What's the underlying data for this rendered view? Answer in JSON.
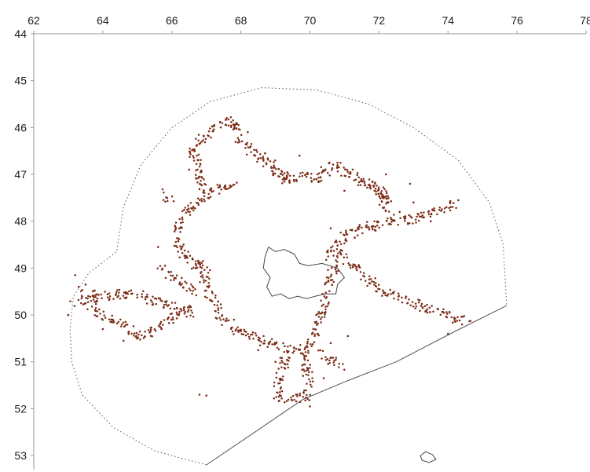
{
  "chart_data": {
    "type": "scatter",
    "title": "",
    "xlabel": "",
    "ylabel": "",
    "x_axis": {
      "position": "top",
      "range": [
        62,
        78
      ],
      "ticks": [
        62,
        64,
        66,
        68,
        70,
        72,
        74,
        76,
        78
      ]
    },
    "y_axis": {
      "inverted": true,
      "range": [
        44,
        53.3
      ],
      "ticks": [
        44,
        45,
        46,
        47,
        48,
        49,
        50,
        51,
        52,
        53
      ]
    },
    "grid": false,
    "legend": "none",
    "colors": {
      "points": "#7a2a14",
      "boundary": "#555555",
      "outline": "#444444",
      "axis": "#9a9a9a"
    },
    "series": [
      {
        "kind": "dense-point-bands",
        "paths": [
          [
            [
              67.9,
              47.25
            ],
            [
              67.4,
              47.3
            ],
            [
              67.1,
              47.35
            ],
            [
              66.9,
              47.5
            ]
          ],
          [
            [
              66.95,
              47.5
            ],
            [
              66.6,
              46.45
            ],
            [
              67.2,
              46.0
            ],
            [
              67.8,
              45.85
            ],
            [
              68.0,
              46.3
            ],
            [
              68.5,
              46.65
            ],
            [
              69.0,
              46.85
            ],
            [
              69.4,
              47.1
            ]
          ],
          [
            [
              68.9,
              46.95
            ],
            [
              69.3,
              47.15
            ],
            [
              69.7,
              47.0
            ],
            [
              70.2,
              47.1
            ],
            [
              70.7,
              46.8
            ],
            [
              71.2,
              47.0
            ],
            [
              71.6,
              47.2
            ],
            [
              71.8,
              47.25
            ],
            [
              72.1,
              47.45
            ],
            [
              72.3,
              47.85
            ],
            [
              72.35,
              48.0
            ]
          ],
          [
            [
              71.6,
              47.2
            ],
            [
              71.9,
              47.3
            ],
            [
              72.2,
              47.4
            ],
            [
              72.25,
              47.7
            ]
          ],
          [
            [
              72.35,
              48.0
            ],
            [
              73.0,
              47.95
            ],
            [
              73.6,
              47.8
            ],
            [
              74.2,
              47.65
            ]
          ],
          [
            [
              72.35,
              48.0
            ],
            [
              71.6,
              48.15
            ],
            [
              71.0,
              48.3
            ],
            [
              70.8,
              48.6
            ],
            [
              71.0,
              48.8
            ],
            [
              71.2,
              48.95
            ],
            [
              71.5,
              49.1
            ],
            [
              71.8,
              49.3
            ],
            [
              72.2,
              49.5
            ],
            [
              72.8,
              49.7
            ],
            [
              73.2,
              49.8
            ],
            [
              73.8,
              49.95
            ],
            [
              74.3,
              50.1
            ],
            [
              74.6,
              50.15
            ]
          ],
          [
            [
              70.7,
              48.5
            ],
            [
              70.6,
              48.75
            ]
          ],
          [
            [
              70.8,
              48.9
            ],
            [
              70.6,
              49.2
            ],
            [
              70.5,
              49.6
            ],
            [
              70.35,
              50.0
            ],
            [
              70.2,
              50.3
            ],
            [
              70.1,
              50.5
            ]
          ],
          [
            [
              66.95,
              47.5
            ],
            [
              66.5,
              47.7
            ],
            [
              66.2,
              48.0
            ],
            [
              66.1,
              48.3
            ],
            [
              66.25,
              48.6
            ],
            [
              66.6,
              48.9
            ],
            [
              66.9,
              49.1
            ],
            [
              67.05,
              49.4
            ],
            [
              67.1,
              49.6
            ],
            [
              67.3,
              49.85
            ],
            [
              67.5,
              50.15
            ],
            [
              67.9,
              50.35
            ],
            [
              68.4,
              50.45
            ],
            [
              68.8,
              50.6
            ],
            [
              69.3,
              50.7
            ],
            [
              69.8,
              50.75
            ],
            [
              70.1,
              50.6
            ]
          ],
          [
            [
              65.7,
              49.0
            ],
            [
              66.1,
              49.25
            ],
            [
              66.6,
              49.5
            ]
          ],
          [
            [
              69.3,
              50.8
            ],
            [
              69.2,
              51.2
            ],
            [
              69.05,
              51.55
            ],
            [
              69.1,
              51.75
            ],
            [
              69.5,
              51.8
            ],
            [
              69.85,
              51.75
            ],
            [
              70.0,
              51.45
            ],
            [
              69.9,
              51.1
            ],
            [
              69.8,
              50.8
            ]
          ],
          [
            [
              63.1,
              49.8
            ],
            [
              63.8,
              49.65
            ],
            [
              64.5,
              49.55
            ],
            [
              65.2,
              49.6
            ],
            [
              65.7,
              49.75
            ],
            [
              66.2,
              49.9
            ],
            [
              66.6,
              49.85
            ]
          ],
          [
            [
              63.6,
              49.9
            ],
            [
              64.2,
              50.05
            ],
            [
              64.7,
              50.25
            ],
            [
              65.0,
              50.45
            ],
            [
              65.4,
              50.35
            ],
            [
              65.8,
              50.15
            ],
            [
              66.2,
              49.95
            ],
            [
              66.5,
              49.95
            ]
          ],
          [
            [
              63.4,
              49.6
            ],
            [
              63.7,
              49.5
            ]
          ],
          [
            [
              70.3,
              50.8
            ],
            [
              70.6,
              50.95
            ],
            [
              70.9,
              51.1
            ]
          ],
          [
            [
              65.8,
              47.4
            ],
            [
              66.0,
              47.55
            ]
          ],
          [
            [
              66.7,
              48.8
            ],
            [
              67.0,
              49.0
            ]
          ]
        ]
      },
      {
        "kind": "scattered-points",
        "points": [
          [
            63.3,
            49.4
          ],
          [
            63.5,
            49.35
          ],
          [
            63.2,
            49.15
          ],
          [
            63.0,
            50.0
          ],
          [
            64.0,
            50.3
          ],
          [
            64.6,
            50.55
          ],
          [
            65.6,
            48.55
          ],
          [
            65.8,
            48.95
          ],
          [
            66.8,
            51.7
          ],
          [
            67.0,
            51.72
          ],
          [
            69.8,
            51.3
          ],
          [
            70.4,
            51.35
          ],
          [
            70.6,
            50.6
          ],
          [
            71.1,
            50.45
          ],
          [
            71.3,
            48.35
          ],
          [
            71.9,
            48.2
          ],
          [
            73.0,
            47.6
          ],
          [
            73.5,
            48.0
          ],
          [
            72.6,
            47.8
          ],
          [
            74.0,
            50.4
          ],
          [
            72.9,
            47.2
          ],
          [
            70.8,
            46.75
          ],
          [
            72.2,
            47.0
          ],
          [
            69.7,
            46.6
          ],
          [
            68.7,
            46.55
          ],
          [
            66.8,
            46.35
          ],
          [
            66.5,
            46.9
          ],
          [
            67.8,
            50.1
          ],
          [
            68.5,
            50.75
          ],
          [
            69.0,
            51.0
          ],
          [
            70.0,
            51.95
          ],
          [
            70.6,
            48.15
          ],
          [
            71.0,
            47.35
          ],
          [
            74.3,
            47.55
          ],
          [
            68.2,
            46.1
          ]
        ]
      }
    ],
    "boundary": {
      "style": "dashed-arc-plus-solid-line",
      "dashed_arc": [
        [
          67.0,
          53.2
        ],
        [
          65.5,
          52.9
        ],
        [
          64.3,
          52.4
        ],
        [
          63.4,
          51.7
        ],
        [
          63.1,
          51.0
        ],
        [
          63.05,
          50.3
        ],
        [
          63.15,
          49.6
        ],
        [
          63.6,
          49.1
        ],
        [
          64.4,
          48.65
        ],
        [
          64.6,
          47.7
        ],
        [
          65.1,
          46.8
        ],
        [
          66.0,
          46.0
        ],
        [
          67.1,
          45.45
        ],
        [
          68.6,
          45.15
        ],
        [
          70.2,
          45.2
        ],
        [
          71.7,
          45.5
        ],
        [
          73.0,
          46.0
        ],
        [
          74.3,
          46.7
        ],
        [
          75.2,
          47.6
        ],
        [
          75.6,
          48.5
        ],
        [
          75.7,
          49.8
        ]
      ],
      "solid_line": [
        [
          75.7,
          49.8
        ],
        [
          74.2,
          50.35
        ],
        [
          72.5,
          51.0
        ],
        [
          71.1,
          51.4
        ],
        [
          69.8,
          51.8
        ],
        [
          68.4,
          52.5
        ],
        [
          67.0,
          53.2
        ]
      ]
    },
    "outlines": [
      {
        "name": "",
        "points": [
          [
            68.7,
            48.75
          ],
          [
            68.8,
            48.55
          ],
          [
            69.0,
            48.65
          ],
          [
            69.25,
            48.6
          ],
          [
            69.55,
            48.7
          ],
          [
            69.7,
            48.9
          ],
          [
            69.95,
            48.95
          ],
          [
            70.35,
            48.9
          ],
          [
            70.8,
            49.0
          ],
          [
            71.0,
            49.2
          ],
          [
            70.8,
            49.35
          ],
          [
            70.75,
            49.55
          ],
          [
            70.45,
            49.55
          ],
          [
            70.15,
            49.6
          ],
          [
            69.9,
            49.65
          ],
          [
            69.65,
            49.6
          ],
          [
            69.4,
            49.65
          ],
          [
            69.15,
            49.55
          ],
          [
            68.9,
            49.6
          ],
          [
            68.75,
            49.4
          ],
          [
            68.85,
            49.2
          ],
          [
            68.65,
            49.0
          ],
          [
            68.7,
            48.75
          ]
        ]
      },
      {
        "name": "",
        "points": [
          [
            73.2,
            53.0
          ],
          [
            73.35,
            52.92
          ],
          [
            73.55,
            52.98
          ],
          [
            73.65,
            53.08
          ],
          [
            73.45,
            53.15
          ],
          [
            73.25,
            53.1
          ],
          [
            73.2,
            53.0
          ]
        ]
      }
    ]
  }
}
